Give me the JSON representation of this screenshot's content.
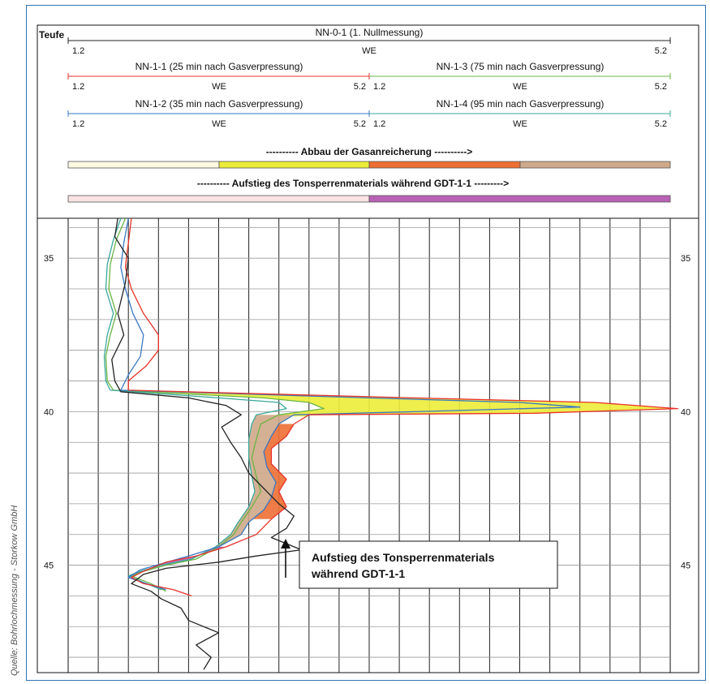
{
  "source_credit": "Quelle: Bohrlochmessung - Storkow GmbH",
  "header": {
    "depth_label": "Teufe",
    "tracks": [
      {
        "title": "NN-0-1 (1. Nullmessung)",
        "min": "1.2",
        "unit": "WE",
        "max": "5.2",
        "color": "#222222"
      },
      {
        "title": "NN-1-1 (25 min nach Gasverpressung)",
        "min": "1.2",
        "unit": "WE",
        "max": "5.2",
        "color": "#e8322a"
      },
      {
        "title": "NN-1-3 (75 min nach Gasverpressung)",
        "min": "1.2",
        "unit": "WE",
        "max": "5.2",
        "color": "#6bb544"
      },
      {
        "title": "NN-1-2 (35 min nach Gasverpressung)",
        "min": "1.2",
        "unit": "WE",
        "max": "5.2",
        "color": "#3a78c3"
      },
      {
        "title": "NN-1-4 (95 min nach Gasverpressung)",
        "min": "1.2",
        "unit": "WE",
        "max": "5.2",
        "color": "#3aa89a"
      }
    ],
    "gas_bar_label": "---------- Abbau der Gasanreicherung ---------->",
    "gas_bar_colors": [
      "#fbf9e2",
      "#ecec3a",
      "#ee6f33",
      "#cfa98a"
    ],
    "clay_bar_label": "---------- Aufstieg des Tonsperrenmaterials während GDT-1-1 --------->",
    "clay_bar_colors": [
      "#fbe3e3",
      "#b961b5"
    ]
  },
  "annotation": {
    "line1": "Aufstieg des Tonsperrenmaterials",
    "line2": "während GDT-1-1"
  },
  "chart_data": {
    "type": "line",
    "xlabel": "WE",
    "ylabel": "Teufe",
    "xlim": [
      1.2,
      5.2
    ],
    "ylim": [
      33.7,
      48.5
    ],
    "y_ticks": [
      "35",
      "40",
      "45"
    ],
    "y_inverted": true,
    "grid": true,
    "series": [
      {
        "name": "NN-0-1 (1. Nullmessung)",
        "color": "#222222",
        "points": [
          [
            1.53,
            33.7
          ],
          [
            1.51,
            34.3
          ],
          [
            1.6,
            35
          ],
          [
            1.58,
            35.8
          ],
          [
            1.53,
            36.8
          ],
          [
            1.57,
            37.5
          ],
          [
            1.49,
            38.3
          ],
          [
            1.51,
            39
          ],
          [
            1.55,
            39.35
          ],
          [
            2.0,
            39.55
          ],
          [
            2.25,
            39.8
          ],
          [
            2.35,
            40.1
          ],
          [
            2.22,
            40.5
          ],
          [
            2.28,
            41
          ],
          [
            2.35,
            41.5
          ],
          [
            2.4,
            42
          ],
          [
            2.5,
            42.5
          ],
          [
            2.6,
            43
          ],
          [
            2.7,
            43.4
          ],
          [
            2.65,
            43.8
          ],
          [
            2.55,
            44.1
          ],
          [
            2.75,
            44.5
          ],
          [
            2.45,
            44.7
          ],
          [
            2.2,
            44.9
          ],
          [
            1.85,
            45.1
          ],
          [
            1.7,
            45.3
          ],
          [
            1.62,
            45.6
          ],
          [
            1.75,
            45.85
          ],
          [
            1.82,
            46.1
          ],
          [
            1.95,
            46.4
          ],
          [
            2.0,
            46.8
          ],
          [
            2.2,
            47.2
          ],
          [
            2.05,
            47.6
          ],
          [
            2.15,
            48
          ],
          [
            2.1,
            48.4
          ]
        ]
      },
      {
        "name": "NN-1-1 (25 min nach Gasverpressung)",
        "color": "#e8322a",
        "points": [
          [
            1.62,
            33.7
          ],
          [
            1.6,
            34.5
          ],
          [
            1.58,
            35.3
          ],
          [
            1.62,
            36
          ],
          [
            1.7,
            36.8
          ],
          [
            1.8,
            37.5
          ],
          [
            1.8,
            38
          ],
          [
            1.72,
            38.5
          ],
          [
            1.6,
            39
          ],
          [
            1.6,
            39.3
          ],
          [
            3.5,
            39.55
          ],
          [
            4.7,
            39.7
          ],
          [
            5.25,
            39.9
          ],
          [
            4.3,
            40.05
          ],
          [
            2.8,
            40.1
          ],
          [
            2.7,
            40.4
          ],
          [
            2.65,
            40.8
          ],
          [
            2.55,
            41.2
          ],
          [
            2.55,
            41.7
          ],
          [
            2.65,
            42.2
          ],
          [
            2.6,
            42.6
          ],
          [
            2.65,
            43.1
          ],
          [
            2.55,
            43.5
          ],
          [
            2.45,
            44
          ],
          [
            2.25,
            44.4
          ],
          [
            2.05,
            44.7
          ],
          [
            1.85,
            44.9
          ],
          [
            1.7,
            45.2
          ],
          [
            1.62,
            45.4
          ],
          [
            1.7,
            45.6
          ],
          [
            1.9,
            45.8
          ],
          [
            2.02,
            46
          ]
        ]
      },
      {
        "name": "NN-1-3 (75 min nach Gasverpressung)",
        "color": "#6bb544",
        "points": [
          [
            1.58,
            33.7
          ],
          [
            1.52,
            34.4
          ],
          [
            1.48,
            35.2
          ],
          [
            1.47,
            36
          ],
          [
            1.52,
            36.8
          ],
          [
            1.48,
            37.5
          ],
          [
            1.45,
            38.2
          ],
          [
            1.46,
            39
          ],
          [
            1.5,
            39.3
          ],
          [
            2.5,
            39.55
          ],
          [
            2.8,
            39.7
          ],
          [
            2.9,
            39.9
          ],
          [
            2.6,
            40.1
          ],
          [
            2.48,
            40.4
          ],
          [
            2.45,
            40.9
          ],
          [
            2.42,
            41.5
          ],
          [
            2.45,
            42.1
          ],
          [
            2.48,
            42.6
          ],
          [
            2.42,
            43.1
          ],
          [
            2.35,
            43.6
          ],
          [
            2.3,
            44
          ],
          [
            2.2,
            44.4
          ],
          [
            2.05,
            44.8
          ],
          [
            1.85,
            45
          ],
          [
            1.7,
            45.2
          ],
          [
            1.62,
            45.35
          ],
          [
            1.75,
            45.6
          ],
          [
            1.85,
            45.85
          ]
        ]
      },
      {
        "name": "NN-1-2 (35 min nach Gasverpressung)",
        "color": "#3a78c3",
        "points": [
          [
            1.6,
            33.7
          ],
          [
            1.57,
            34.5
          ],
          [
            1.55,
            35.3
          ],
          [
            1.58,
            36
          ],
          [
            1.63,
            36.8
          ],
          [
            1.7,
            37.5
          ],
          [
            1.68,
            38.2
          ],
          [
            1.6,
            38.8
          ],
          [
            1.55,
            39.3
          ],
          [
            3.2,
            39.55
          ],
          [
            4.2,
            39.7
          ],
          [
            4.6,
            39.85
          ],
          [
            3.5,
            40
          ],
          [
            2.7,
            40.1
          ],
          [
            2.6,
            40.4
          ],
          [
            2.55,
            40.8
          ],
          [
            2.5,
            41.3
          ],
          [
            2.52,
            41.8
          ],
          [
            2.58,
            42.3
          ],
          [
            2.55,
            42.8
          ],
          [
            2.5,
            43.2
          ],
          [
            2.4,
            43.6
          ],
          [
            2.35,
            44
          ],
          [
            2.2,
            44.4
          ],
          [
            2.0,
            44.7
          ],
          [
            1.82,
            44.95
          ],
          [
            1.68,
            45.15
          ],
          [
            1.6,
            45.4
          ],
          [
            1.72,
            45.6
          ],
          [
            1.85,
            45.8
          ]
        ]
      },
      {
        "name": "NN-1-4 (95 min nach Gasverpressung)",
        "color": "#3aa89a",
        "points": [
          [
            1.55,
            33.7
          ],
          [
            1.5,
            34.4
          ],
          [
            1.46,
            35.2
          ],
          [
            1.45,
            36
          ],
          [
            1.5,
            36.8
          ],
          [
            1.46,
            37.5
          ],
          [
            1.44,
            38.2
          ],
          [
            1.45,
            39
          ],
          [
            1.48,
            39.3
          ],
          [
            2.2,
            39.55
          ],
          [
            2.6,
            39.7
          ],
          [
            2.65,
            39.9
          ],
          [
            2.45,
            40.1
          ],
          [
            2.42,
            40.4
          ],
          [
            2.4,
            40.9
          ],
          [
            2.4,
            41.5
          ],
          [
            2.42,
            42.1
          ],
          [
            2.44,
            42.6
          ],
          [
            2.4,
            43.1
          ],
          [
            2.33,
            43.6
          ],
          [
            2.28,
            44
          ],
          [
            2.18,
            44.4
          ],
          [
            2.02,
            44.8
          ],
          [
            1.82,
            45
          ],
          [
            1.68,
            45.2
          ],
          [
            1.6,
            45.35
          ],
          [
            1.72,
            45.6
          ],
          [
            1.82,
            45.8
          ]
        ]
      }
    ]
  }
}
